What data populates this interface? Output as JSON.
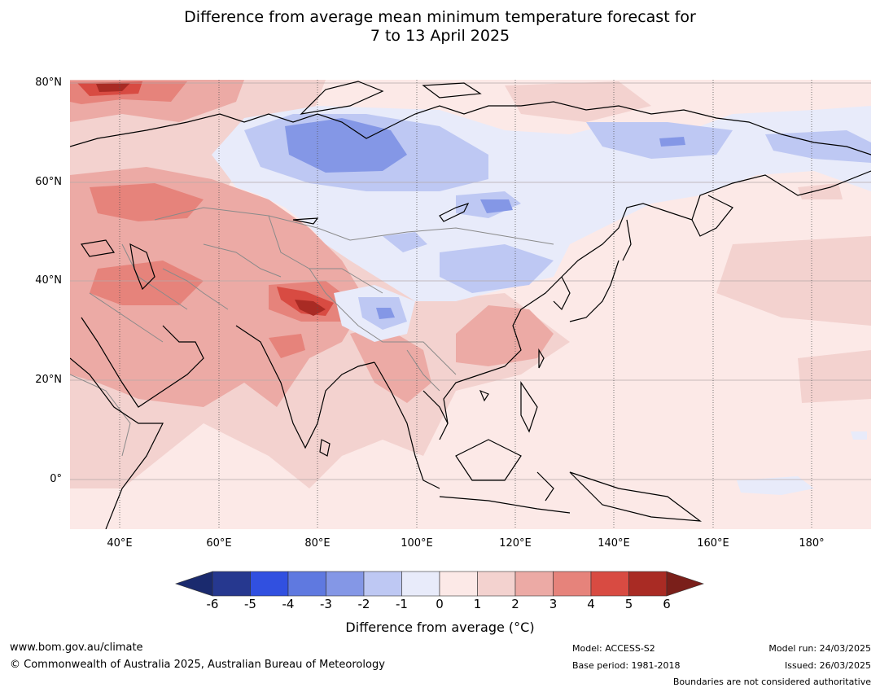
{
  "title": {
    "line1": "Difference from average mean minimum temperature forecast for",
    "line2": "7 to 13 April 2025"
  },
  "map": {
    "lat_labels": [
      "80°N",
      "60°N",
      "40°N",
      "20°N",
      "0°"
    ],
    "lon_labels": [
      "40°E",
      "60°E",
      "80°E",
      "100°E",
      "120°E",
      "140°E",
      "160°E",
      "180°"
    ],
    "extent": {
      "lon_min": 30,
      "lon_max": 192,
      "lat_min": -10,
      "lat_max": 80
    }
  },
  "colorbar": {
    "ticks": [
      "-6",
      "-5",
      "-4",
      "-3",
      "-2",
      "-1",
      "0",
      "1",
      "2",
      "3",
      "4",
      "5",
      "6"
    ],
    "colors": [
      "#26388f",
      "#3150e0",
      "#5f79e0",
      "#8497e6",
      "#bec8f3",
      "#e8ebfa",
      "#fce9e7",
      "#f3d2cf",
      "#ecaaa5",
      "#e6837b",
      "#d84b42",
      "#a92b24"
    ],
    "under_color": "#1a2a6e",
    "over_color": "#7a1f1a",
    "label": "Difference from average (°C)"
  },
  "footer": {
    "website": "www.bom.gov.au/climate",
    "copyright": "© Commonwealth of Australia 2025, Australian Bureau of Meteorology",
    "model": "Model: ACCESS-S2",
    "base_period": "Base period: 1981-2018",
    "model_run": "Model run: 24/03/2025",
    "issued": "Issued: 26/03/2025",
    "disclaimer": "Boundaries are not considered authoritative"
  }
}
